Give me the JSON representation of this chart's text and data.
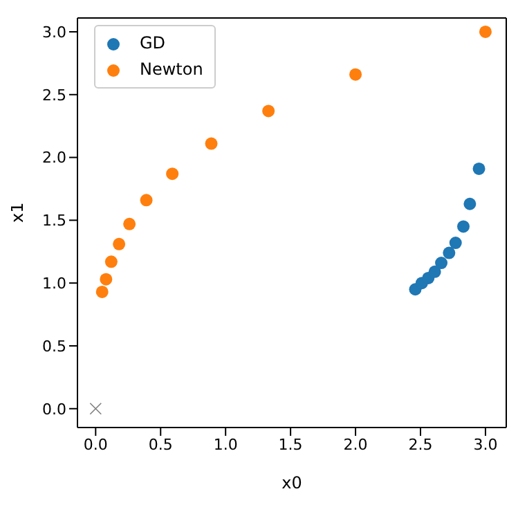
{
  "chart_data": {
    "type": "scatter",
    "xlabel": "x0",
    "ylabel": "x1",
    "xlim": [
      -0.14,
      3.16
    ],
    "ylim": [
      -0.15,
      3.11
    ],
    "xticks": [
      {
        "value": 0,
        "label": "0.0"
      },
      {
        "value": 0.5,
        "label": "0.5"
      },
      {
        "value": 1,
        "label": "1.0"
      },
      {
        "value": 1.5,
        "label": "1.5"
      },
      {
        "value": 2,
        "label": "2.0"
      },
      {
        "value": 2.5,
        "label": "2.5"
      },
      {
        "value": 3,
        "label": "3.0"
      }
    ],
    "yticks": [
      {
        "value": 0,
        "label": "0.0"
      },
      {
        "value": 0.5,
        "label": "0.5"
      },
      {
        "value": 1,
        "label": "1.0"
      },
      {
        "value": 1.5,
        "label": "1.5"
      },
      {
        "value": 2,
        "label": "2.0"
      },
      {
        "value": 2.5,
        "label": "2.5"
      },
      {
        "value": 3,
        "label": "3.0"
      }
    ],
    "legend": "top left",
    "marker": "circle",
    "series": [
      {
        "name": "GD",
        "color": "#1f77b4",
        "x": [
          2.46,
          2.51,
          2.56,
          2.61,
          2.66,
          2.72,
          2.77,
          2.83,
          2.88,
          2.95
        ],
        "values": [
          0.95,
          1.0,
          1.04,
          1.09,
          1.16,
          1.24,
          1.32,
          1.45,
          1.63,
          1.91
        ]
      },
      {
        "name": "Newton",
        "color": "#ff7f0e",
        "x": [
          3.0,
          2.0,
          1.33,
          0.89,
          0.59,
          0.39,
          0.26,
          0.18,
          0.12,
          0.08,
          0.05
        ],
        "values": [
          3.0,
          2.66,
          2.37,
          2.11,
          1.87,
          1.66,
          1.47,
          1.31,
          1.17,
          1.03,
          0.93
        ]
      },
      {
        "color": "#7f7f7f",
        "marker": "cross",
        "x": [
          0
        ],
        "values": [
          0
        ]
      }
    ]
  }
}
